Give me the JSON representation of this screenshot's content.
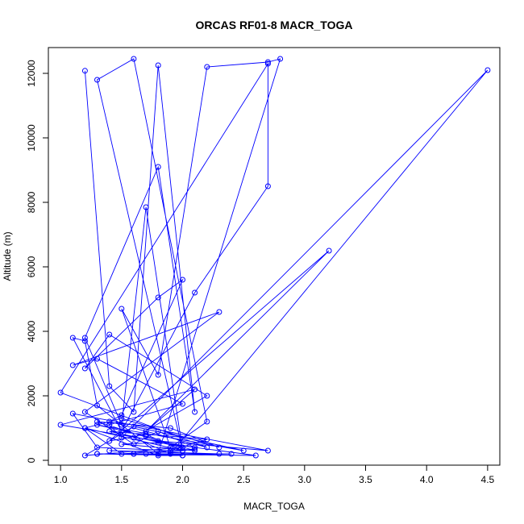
{
  "chart_data": {
    "type": "line",
    "title": "ORCAS RF01-8 MACR_TOGA",
    "xlabel": "MACR_TOGA",
    "ylabel": "Altitude (m)",
    "xlim": [
      0.9,
      4.6
    ],
    "ylim": [
      -150,
      12800
    ],
    "xticks": [
      1.0,
      1.5,
      2.0,
      2.5,
      3.0,
      3.5,
      4.0,
      4.5
    ],
    "xtick_labels": [
      "1.0",
      "1.5",
      "2.0",
      "2.5",
      "3.0",
      "3.5",
      "4.0",
      "4.5"
    ],
    "yticks": [
      0,
      2000,
      4000,
      6000,
      8000,
      10000,
      12000
    ],
    "ytick_labels": [
      "0",
      "2000",
      "4000",
      "6000",
      "8000",
      "10000",
      "12000"
    ],
    "grid": false,
    "series": [
      {
        "color": "#0000ff",
        "marker": "open-circle",
        "x": [
          1.2,
          1.4,
          1.6,
          1.8,
          2.1,
          1.8,
          1.2,
          1.5,
          1.7,
          2.0,
          1.3,
          1.6,
          2.2,
          1.9,
          1.5,
          1.8,
          2.2,
          2.7,
          2.8,
          1.8,
          1.3,
          1.2,
          1.1,
          1.5,
          2.1,
          2.7,
          2.7,
          1.0,
          2.2,
          1.4,
          1.5,
          2.0,
          1.8,
          1.2,
          1.4,
          2.2,
          1.6,
          1.9,
          4.5,
          1.5,
          1.4,
          2.0,
          1.3,
          1.1,
          2.3,
          1.2,
          1.6,
          1.8,
          2.1,
          1.0,
          2.1,
          1.7,
          3.2,
          1.4,
          1.7,
          2.0,
          1.2,
          1.5,
          2.3,
          1.9,
          1.3,
          1.8,
          2.7,
          1.1,
          1.3,
          1.9,
          2.2,
          1.4,
          2.0,
          1.2,
          1.6,
          2.5,
          1.3,
          1.7,
          2.1,
          1.5,
          1.8,
          2.6,
          1.3,
          2.0,
          1.6,
          2.4,
          1.8,
          1.2,
          1.5,
          2.1,
          1.9,
          1.4,
          2.3,
          1.7,
          1.3,
          2.0,
          1.6
        ],
        "y": [
          12080,
          2300,
          1500,
          12250,
          1500,
          9100,
          3800,
          1100,
          7850,
          300,
          11800,
          12450,
          1200,
          400,
          4700,
          2650,
          12200,
          12350,
          12450,
          200,
          1700,
          3700,
          3800,
          900,
          5200,
          8500,
          12300,
          2100,
          400,
          1200,
          1400,
          5600,
          5050,
          2850,
          3900,
          2000,
          700,
          200,
          12100,
          700,
          1100,
          1750,
          3150,
          2950,
          4600,
          1500,
          500,
          900,
          400,
          1100,
          2200,
          900,
          6500,
          600,
          800,
          300,
          1000,
          1300,
          400,
          1000,
          1200,
          600,
          300,
          1450,
          400,
          300,
          650,
          900,
          400,
          150,
          1050,
          300,
          1100,
          750,
          300,
          500,
          550,
          150,
          200,
          150,
          200,
          200,
          150,
          1000,
          200,
          350,
          250,
          300,
          200,
          200,
          200,
          150,
          200
        ]
      }
    ]
  }
}
